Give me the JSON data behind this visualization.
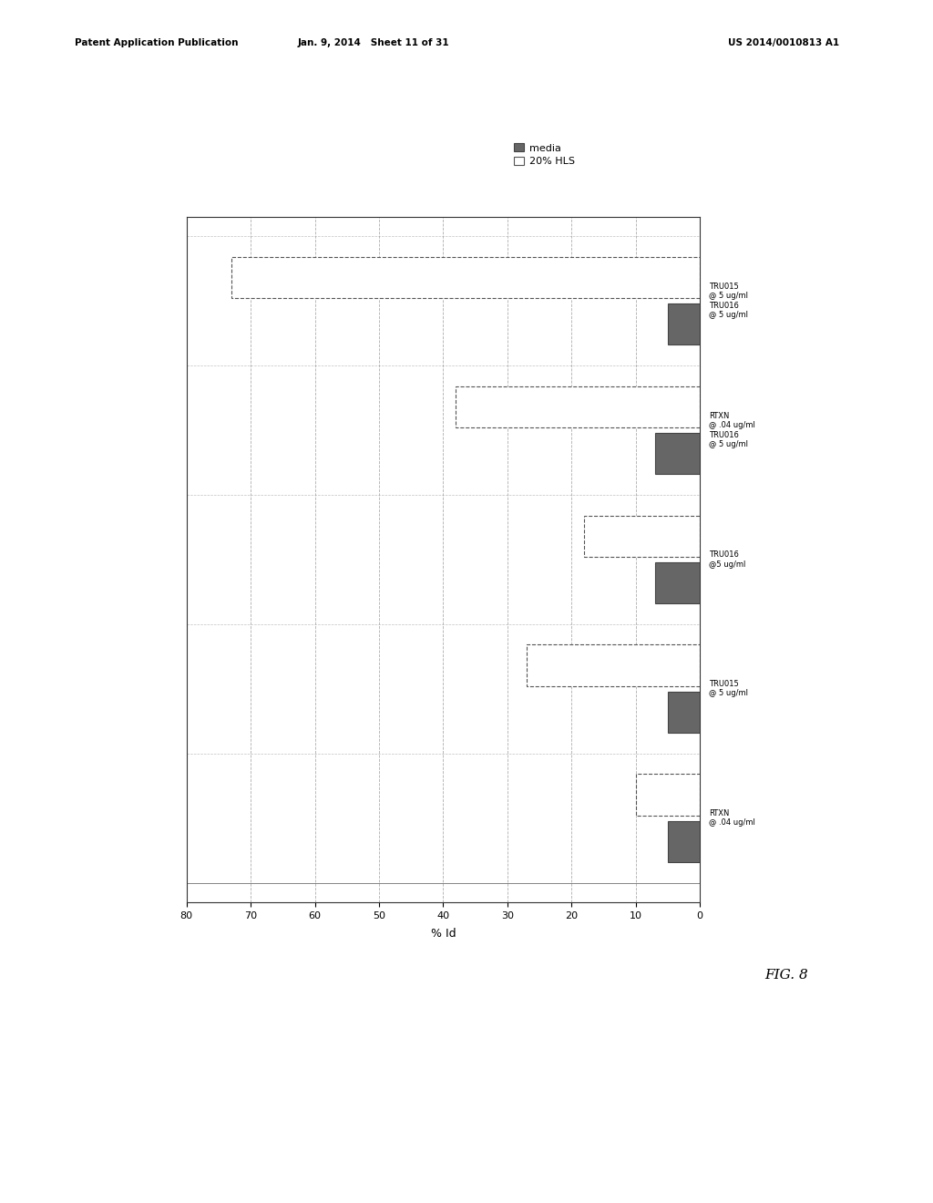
{
  "patent_header_left": "Patent Application Publication",
  "patent_header_mid": "Jan. 9, 2014   Sheet 11 of 31",
  "patent_header_right": "US 2014/0010813 A1",
  "fig_label": "FIG. 8",
  "xlabel": "% Id",
  "xlim": [
    0,
    80
  ],
  "xticks": [
    0,
    10,
    20,
    30,
    40,
    50,
    60,
    70,
    80
  ],
  "xtick_labels": [
    "0",
    "10",
    "20",
    "30",
    "40",
    "50",
    "60",
    "70",
    "80"
  ],
  "groups": [
    {
      "label_lines": [
        "RTXN",
        "@ .04 ug/ml"
      ],
      "media": 5,
      "hls": 10
    },
    {
      "label_lines": [
        "TRU015",
        "@ 5 ug/ml"
      ],
      "media": 5,
      "hls": 27
    },
    {
      "label_lines": [
        "TRU016",
        "@5 ug/ml"
      ],
      "media": 7,
      "hls": 18
    },
    {
      "label_lines": [
        "RTXN",
        "@ .04 ug/ml",
        "TRU016",
        "@ 5 ug/ml"
      ],
      "media": 7,
      "hls": 38
    },
    {
      "label_lines": [
        "TRU015",
        "@ 5 ug/ml",
        "TRU016",
        "@ 5 ug/ml"
      ],
      "media": 5,
      "hls": 73
    }
  ],
  "legend_labels": [
    "media",
    "20% HLS"
  ],
  "media_color": "#666666",
  "hls_color": "#ffffff",
  "hls_edgecolor": "#555555",
  "media_edgecolor": "#444444",
  "bar_height": 0.32,
  "bar_gap": 0.04,
  "background_color": "#ffffff",
  "grid_color": "#999999",
  "spine_color": "#333333"
}
